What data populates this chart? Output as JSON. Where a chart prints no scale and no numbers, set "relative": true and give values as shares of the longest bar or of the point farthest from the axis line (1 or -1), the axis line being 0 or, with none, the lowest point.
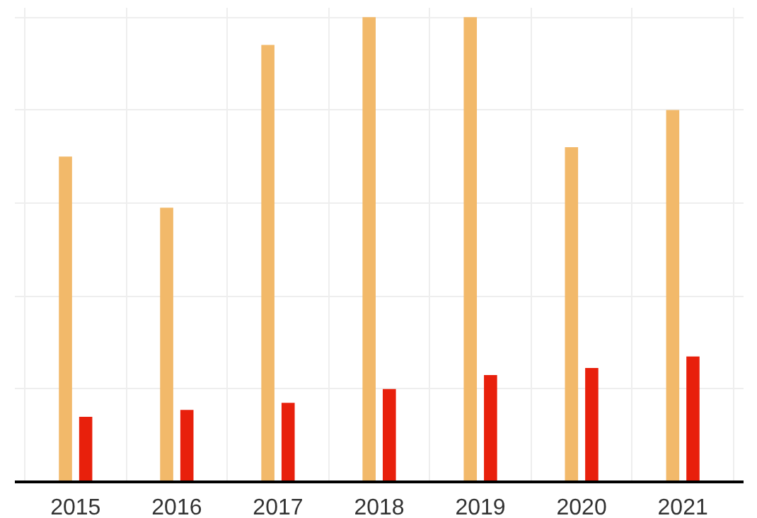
{
  "chart_data": {
    "type": "bar",
    "relative": true,
    "categories": [
      "2015",
      "2016",
      "2017",
      "2018",
      "2019",
      "2020",
      "2021"
    ],
    "series": [
      {
        "color": "#f2b96a",
        "values": [
          0.7,
          0.59,
          0.94,
          1,
          1,
          0.72,
          0.8
        ]
      },
      {
        "color": "#e8200c",
        "values": [
          0.14,
          0.155,
          0.17,
          0.2,
          0.23,
          0.245,
          0.27
        ]
      }
    ],
    "grid": true
  }
}
